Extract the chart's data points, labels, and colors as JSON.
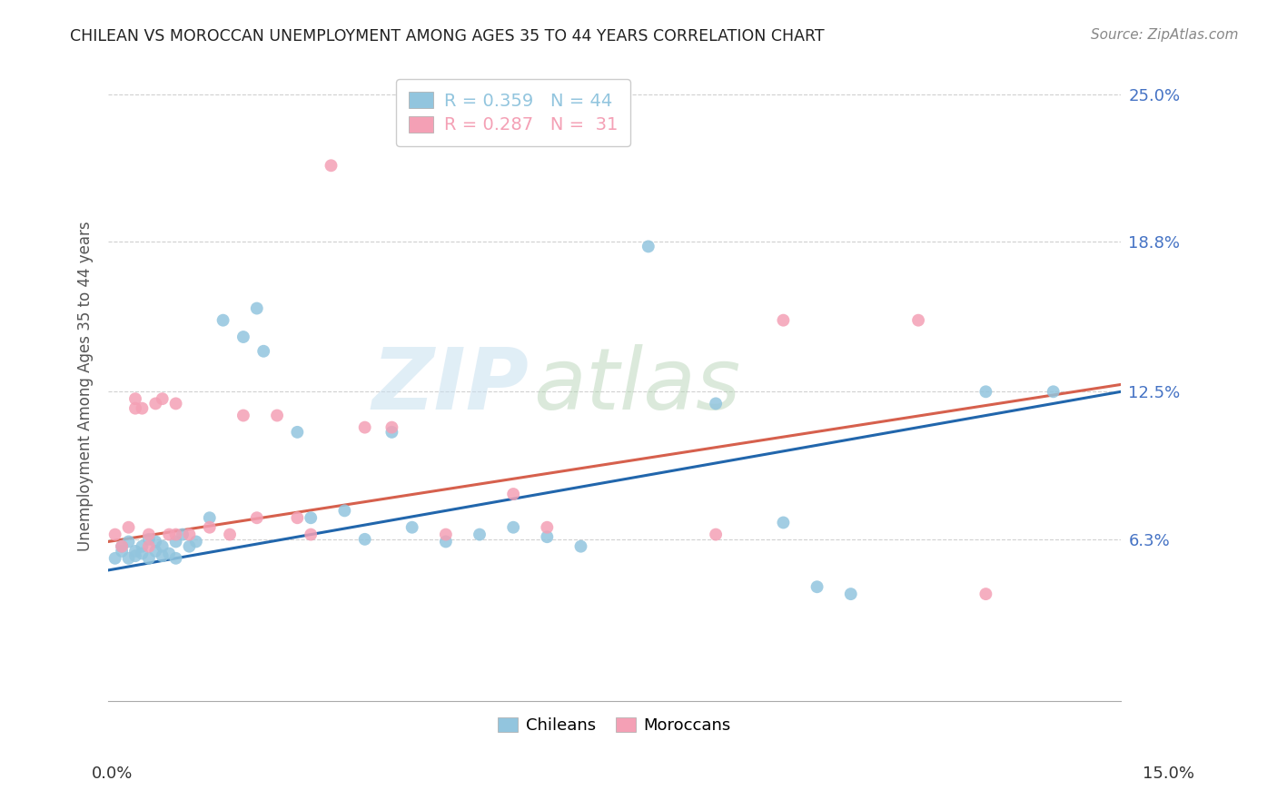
{
  "title": "CHILEAN VS MOROCCAN UNEMPLOYMENT AMONG AGES 35 TO 44 YEARS CORRELATION CHART",
  "source": "Source: ZipAtlas.com",
  "ylabel": "Unemployment Among Ages 35 to 44 years",
  "xlim": [
    0.0,
    0.15
  ],
  "ylim": [
    -0.005,
    0.26
  ],
  "yticks": [
    0.063,
    0.125,
    0.188,
    0.25
  ],
  "ytick_labels": [
    "6.3%",
    "12.5%",
    "18.8%",
    "25.0%"
  ],
  "chilean_color": "#92c5de",
  "moroccan_color": "#f4a582",
  "moroccan_color2": "#f4a0b5",
  "line_chilean_color": "#2166ac",
  "line_moroccan_color": "#d6604d",
  "chilean_R": 0.359,
  "chilean_N": 44,
  "moroccan_R": 0.287,
  "moroccan_N": 31,
  "chilean_line_x0": 0.0,
  "chilean_line_y0": 0.05,
  "chilean_line_x1": 0.15,
  "chilean_line_y1": 0.125,
  "moroccan_line_x0": 0.0,
  "moroccan_line_y0": 0.062,
  "moroccan_line_x1": 0.15,
  "moroccan_line_y1": 0.128,
  "chilean_x": [
    0.001,
    0.002,
    0.002,
    0.003,
    0.003,
    0.004,
    0.004,
    0.005,
    0.005,
    0.006,
    0.006,
    0.007,
    0.007,
    0.008,
    0.008,
    0.009,
    0.01,
    0.01,
    0.011,
    0.012,
    0.013,
    0.015,
    0.017,
    0.02,
    0.022,
    0.023,
    0.028,
    0.03,
    0.035,
    0.038,
    0.042,
    0.045,
    0.05,
    0.055,
    0.06,
    0.065,
    0.07,
    0.08,
    0.09,
    0.1,
    0.105,
    0.11,
    0.13,
    0.14
  ],
  "chilean_y": [
    0.055,
    0.058,
    0.06,
    0.055,
    0.062,
    0.058,
    0.056,
    0.06,
    0.057,
    0.063,
    0.055,
    0.058,
    0.062,
    0.056,
    0.06,
    0.057,
    0.055,
    0.062,
    0.065,
    0.06,
    0.062,
    0.072,
    0.155,
    0.148,
    0.16,
    0.142,
    0.108,
    0.072,
    0.075,
    0.063,
    0.108,
    0.068,
    0.062,
    0.065,
    0.068,
    0.064,
    0.06,
    0.186,
    0.12,
    0.07,
    0.043,
    0.04,
    0.125,
    0.125
  ],
  "moroccan_x": [
    0.001,
    0.002,
    0.003,
    0.004,
    0.004,
    0.005,
    0.006,
    0.006,
    0.007,
    0.008,
    0.009,
    0.01,
    0.01,
    0.012,
    0.015,
    0.018,
    0.02,
    0.022,
    0.025,
    0.028,
    0.03,
    0.033,
    0.038,
    0.042,
    0.05,
    0.06,
    0.065,
    0.09,
    0.1,
    0.12,
    0.13
  ],
  "moroccan_y": [
    0.065,
    0.06,
    0.068,
    0.122,
    0.118,
    0.118,
    0.065,
    0.06,
    0.12,
    0.122,
    0.065,
    0.12,
    0.065,
    0.065,
    0.068,
    0.065,
    0.115,
    0.072,
    0.115,
    0.072,
    0.065,
    0.22,
    0.11,
    0.11,
    0.065,
    0.082,
    0.068,
    0.065,
    0.155,
    0.155,
    0.04
  ],
  "watermark_zip": "ZIP",
  "watermark_atlas": "atlas",
  "background_color": "#ffffff",
  "grid_color": "#d0d0d0",
  "label_color": "#4472C4"
}
